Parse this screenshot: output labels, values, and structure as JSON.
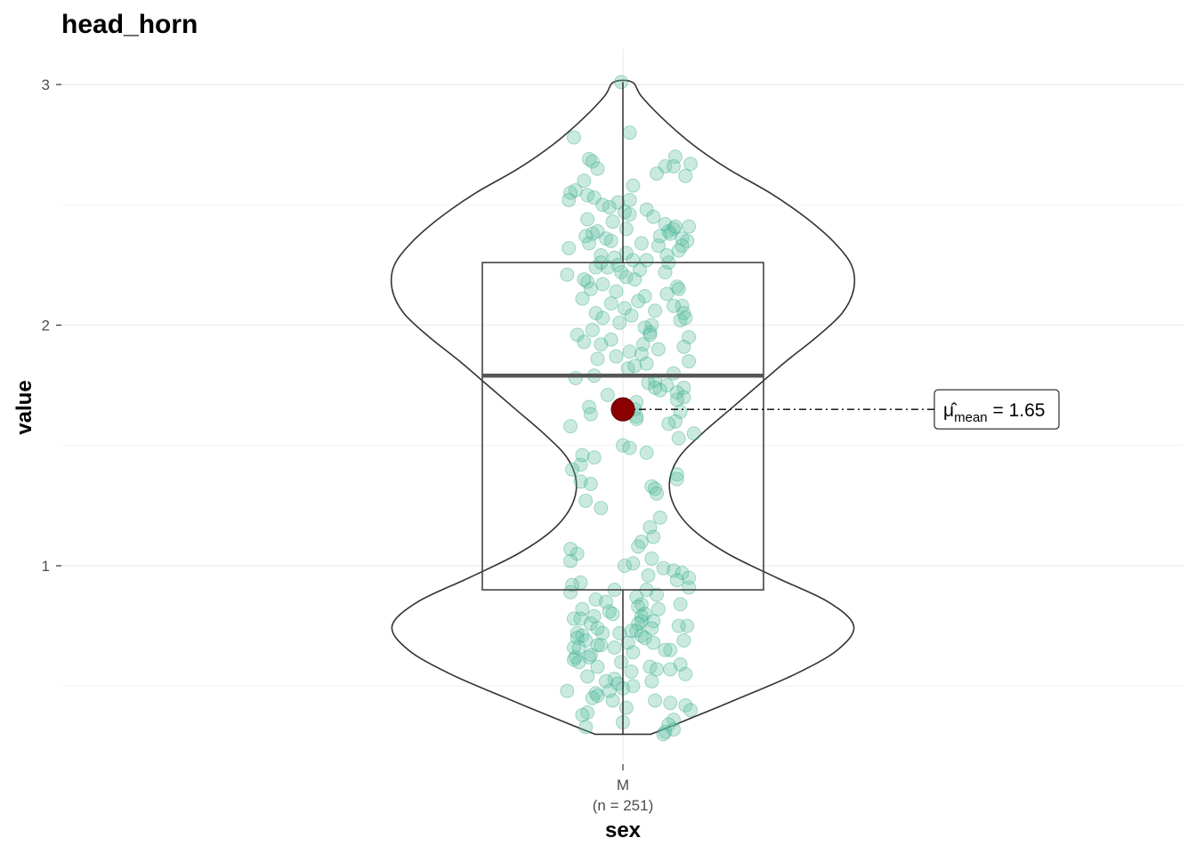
{
  "chart_data": {
    "type": "violin-box-scatter",
    "title": "head_horn",
    "xlabel": "sex",
    "ylabel": "value",
    "categories": [
      "M"
    ],
    "category_sublabels": [
      "(n = 251)"
    ],
    "y_ticks": [
      1,
      2,
      3
    ],
    "y_tick_labels": [
      "1",
      "2",
      "3"
    ],
    "ylim": [
      0.22,
      3.28
    ],
    "grid": true,
    "series": [
      {
        "name": "M",
        "n": 251,
        "box": {
          "q1": 0.9,
          "median": 1.79,
          "q3": 2.26,
          "lower_whisker": 0.3,
          "upper_whisker": 3.01
        },
        "mean": 1.65,
        "density": {
          "y": [
            0.3,
            0.35,
            0.45,
            0.55,
            0.65,
            0.75,
            0.85,
            0.95,
            1.05,
            1.15,
            1.25,
            1.35,
            1.45,
            1.55,
            1.65,
            1.75,
            1.85,
            1.95,
            2.05,
            2.15,
            2.25,
            2.35,
            2.45,
            2.55,
            2.65,
            2.75,
            2.85,
            2.95,
            3.01
          ],
          "width": [
            0.12,
            0.25,
            0.5,
            0.74,
            0.92,
            0.99,
            0.88,
            0.66,
            0.45,
            0.3,
            0.22,
            0.2,
            0.24,
            0.34,
            0.46,
            0.58,
            0.7,
            0.83,
            0.94,
            0.99,
            0.98,
            0.9,
            0.78,
            0.63,
            0.45,
            0.3,
            0.18,
            0.08,
            0.04
          ]
        },
        "points": {
          "values": [
            3.01,
            2.8,
            2.78,
            2.7,
            2.69,
            2.68,
            2.67,
            2.66,
            2.66,
            2.65,
            2.62,
            2.6,
            2.58,
            2.56,
            2.55,
            2.54,
            2.53,
            2.52,
            2.52,
            2.51,
            2.5,
            2.49,
            2.48,
            2.47,
            2.46,
            2.45,
            2.44,
            2.43,
            2.42,
            2.41,
            2.4,
            2.4,
            2.39,
            2.39,
            2.38,
            2.38,
            2.37,
            2.37,
            2.36,
            2.36,
            2.35,
            2.35,
            2.34,
            2.34,
            2.33,
            2.33,
            2.32,
            2.31,
            2.3,
            2.29,
            2.28,
            2.27,
            2.27,
            2.26,
            2.25,
            2.24,
            2.24,
            2.23,
            2.22,
            2.22,
            2.21,
            2.2,
            2.19,
            2.18,
            2.17,
            2.16,
            2.15,
            2.15,
            2.14,
            2.13,
            2.12,
            2.11,
            2.1,
            2.09,
            2.08,
            2.08,
            2.07,
            2.06,
            2.05,
            2.05,
            2.04,
            2.03,
            2.02,
            2.01,
            2.0,
            1.99,
            1.98,
            1.97,
            1.96,
            1.95,
            1.94,
            1.93,
            1.92,
            1.91,
            1.9,
            1.89,
            1.88,
            1.87,
            1.86,
            1.85,
            1.84,
            1.82,
            1.8,
            1.79,
            1.78,
            1.77,
            1.76,
            1.75,
            1.74,
            1.73,
            1.72,
            1.71,
            1.7,
            1.68,
            1.66,
            1.65,
            1.64,
            1.63,
            1.62,
            1.6,
            1.58,
            1.55,
            1.53,
            1.5,
            1.49,
            1.47,
            1.45,
            1.42,
            1.4,
            1.38,
            1.36,
            1.34,
            1.33,
            1.32,
            1.3,
            1.27,
            1.24,
            1.2,
            1.16,
            1.12,
            1.1,
            1.08,
            1.05,
            1.03,
            1.02,
            1.01,
            1.0,
            0.99,
            0.98,
            0.97,
            0.96,
            0.95,
            0.94,
            0.93,
            0.92,
            0.91,
            0.9,
            0.89,
            0.88,
            0.87,
            0.86,
            0.85,
            0.84,
            0.84,
            0.83,
            0.82,
            0.82,
            0.81,
            0.8,
            0.8,
            0.79,
            0.79,
            0.78,
            0.78,
            0.77,
            0.77,
            0.76,
            0.76,
            0.75,
            0.75,
            0.74,
            0.74,
            0.73,
            0.73,
            0.72,
            0.72,
            0.71,
            0.71,
            0.7,
            0.7,
            0.69,
            0.69,
            0.68,
            0.68,
            0.67,
            0.67,
            0.66,
            0.66,
            0.65,
            0.65,
            0.64,
            0.63,
            0.62,
            0.62,
            0.61,
            0.6,
            0.6,
            0.59,
            0.58,
            0.57,
            0.56,
            0.55,
            0.54,
            0.53,
            0.52,
            0.51,
            0.5,
            0.49,
            0.48,
            0.47,
            0.46,
            0.45,
            0.44,
            0.43,
            0.42,
            0.41,
            0.4,
            0.39,
            0.38,
            0.36,
            0.35,
            0.34,
            0.33,
            0.32,
            0.31,
            0.3,
            2.63,
            2.26,
            2.03,
            1.83,
            1.61,
            1.35,
            1.07,
            0.9,
            0.72,
            0.57,
            0.52,
            0.48,
            0.44,
            1.96,
            1.92,
            2.41,
            2.29,
            2.19,
            1.74,
            1.69,
            1.59,
            1.46,
            0.58,
            0.66
          ],
          "jitter_x": [
            -0.01,
            0.04,
            -0.29,
            0.31,
            -0.2,
            -0.18,
            0.4,
            0.25,
            0.3,
            -0.15,
            0.37,
            -0.23,
            0.06,
            -0.28,
            -0.31,
            -0.21,
            -0.17,
            -0.32,
            0.04,
            -0.03,
            -0.12,
            -0.08,
            0.14,
            0.01,
            0.04,
            0.18,
            -0.21,
            -0.06,
            0.25,
            0.39,
            0.02,
            0.3,
            -0.15,
            0.27,
            -0.18,
            0.28,
            0.22,
            -0.22,
            0.35,
            -0.1,
            0.38,
            -0.07,
            -0.2,
            0.11,
            0.21,
            0.35,
            -0.32,
            0.33,
            0.02,
            -0.13,
            -0.05,
            0.06,
            0.14,
            0.27,
            -0.03,
            -0.16,
            -0.09,
            0.1,
            -0.01,
            0.25,
            -0.33,
            0.02,
            0.07,
            -0.21,
            -0.12,
            0.32,
            0.33,
            -0.19,
            -0.04,
            0.26,
            0.13,
            -0.24,
            0.09,
            -0.07,
            0.35,
            0.3,
            0.01,
            0.19,
            -0.16,
            0.36,
            0.05,
            -0.12,
            0.34,
            -0.02,
            0.17,
            0.13,
            -0.18,
            0.16,
            -0.27,
            0.39,
            -0.07,
            -0.23,
            0.12,
            0.36,
            0.21,
            0.04,
            0.11,
            -0.04,
            -0.15,
            0.39,
            0.14,
            0.03,
            0.3,
            -0.17,
            -0.28,
            0.19,
            0.15,
            0.26,
            0.36,
            0.22,
            0.32,
            -0.09,
            0.36,
            0.08,
            -0.2,
            0.07,
            0.34,
            -0.19,
            0.08,
            0.31,
            -0.31,
            0.42,
            0.33,
            0.0,
            0.04,
            0.14,
            -0.17,
            -0.25,
            -0.3,
            0.32,
            0.32,
            -0.19,
            0.17,
            0.19,
            0.2,
            -0.22,
            -0.13,
            0.22,
            0.16,
            0.18,
            0.11,
            0.09,
            -0.27,
            0.17,
            -0.31,
            0.06,
            0.01,
            0.24,
            0.3,
            0.35,
            0.15,
            0.39,
            0.32,
            -0.25,
            -0.3,
            0.39,
            -0.05,
            -0.31,
            0.2,
            0.08,
            -0.16,
            -0.1,
            0.34,
            0.11,
            0.09,
            0.21,
            -0.24,
            -0.08,
            0.13,
            -0.06,
            0.11,
            -0.17,
            -0.29,
            -0.25,
            0.11,
            0.18,
            0.09,
            -0.19,
            0.38,
            0.33,
            -0.15,
            0.17,
            0.08,
            0.05,
            -0.27,
            -0.02,
            0.11,
            -0.24,
            -0.27,
            0.13,
            -0.22,
            0.36,
            0.03,
            0.18,
            -0.15,
            -0.13,
            -0.29,
            -0.05,
            0.28,
            0.25,
            0.06,
            -0.19,
            -0.2,
            -0.28,
            -0.29,
            -0.01,
            -0.26,
            0.34,
            0.16,
            0.2,
            0.05,
            0.37,
            -0.21,
            -0.05,
            -0.1,
            -0.03,
            0.06,
            0.0,
            -0.33,
            -0.16,
            -0.15,
            -0.18,
            0.19,
            0.28,
            0.37,
            0.02,
            0.4,
            -0.21,
            -0.24,
            0.3,
            0.0,
            0.27,
            -0.22,
            0.3,
            0.25,
            0.24,
            0.2,
            -0.13,
            0.37,
            0.07,
            0.08,
            -0.25,
            -0.31,
            0.14,
            -0.12,
            0.28,
            0.17,
            -0.08,
            -0.06,
            0.16,
            -0.13,
            0.31,
            0.26,
            -0.23,
            0.19,
            0.32,
            0.27,
            -0.24,
            -0.15,
            -0.26
          ]
        }
      }
    ],
    "annotations": [
      {
        "type": "mean-label",
        "symbol": "μ̂",
        "subscript": "mean",
        "text": "= 1.65",
        "value": 1.65
      }
    ]
  },
  "colors": {
    "points_fill": "#66c2a5",
    "points_stroke": "#1b9e77",
    "mean_point": "#8b0000",
    "grid": "#ebebeb"
  }
}
